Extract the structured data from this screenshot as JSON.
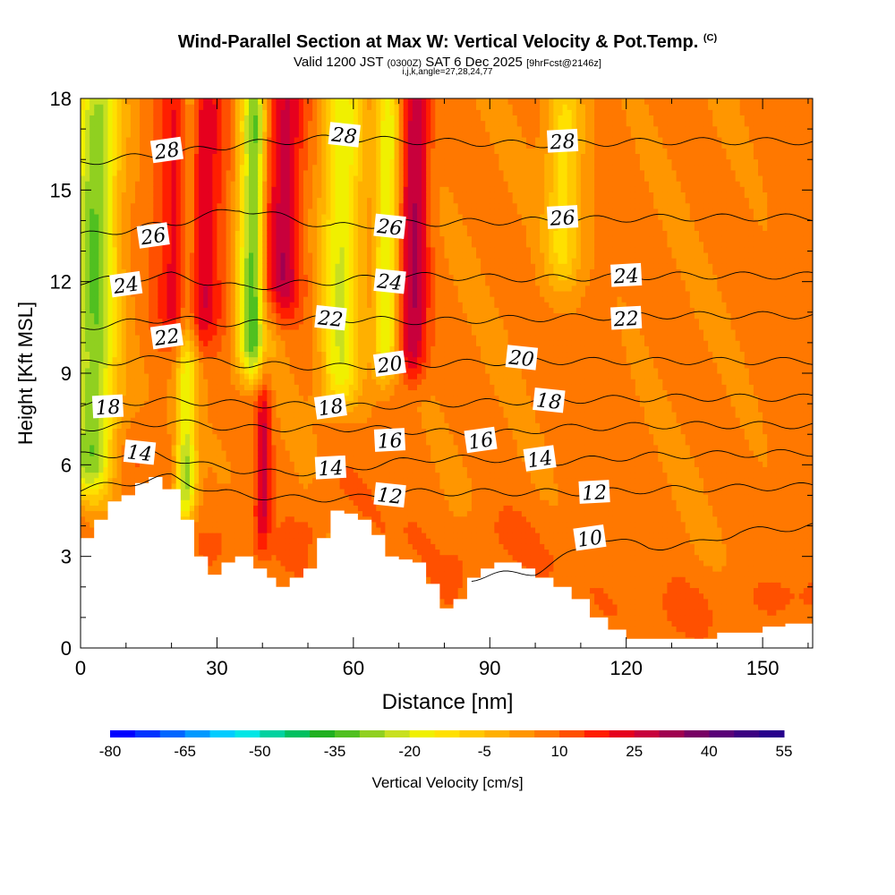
{
  "header": {
    "title": "Wind-Parallel Section at Max W: Vertical Velocity & Pot.Temp.",
    "copyright": "(C)",
    "valid_prefix": "Valid 1200 JST",
    "valid_utc": "(0300Z)",
    "valid_date": "SAT 6 Dec 2025",
    "forecast": "[9hrFcst@2146z]",
    "indices": "i,j,k,angle=27,28,24,77"
  },
  "chart_data": {
    "type": "heatmap",
    "title": "Wind-Parallel Section at Max W: Vertical Velocity & Pot.Temp.",
    "xlabel": "Distance [nm]",
    "ylabel": "Height [Kft MSL]",
    "xlim": [
      0,
      161
    ],
    "ylim": [
      0,
      18
    ],
    "x_ticks": [
      0,
      30,
      60,
      90,
      120,
      150
    ],
    "y_ticks": [
      0,
      3,
      6,
      9,
      12,
      15,
      18
    ],
    "colorbar": {
      "label": "Vertical Velocity [cm/s]",
      "min": -80,
      "max": 55,
      "step": 5,
      "tick_labels": [
        "-80",
        "-65",
        "-50",
        "-35",
        "-20",
        "-5",
        "10",
        "25",
        "40",
        "55"
      ],
      "colors": [
        "#0000ff",
        "#0033ff",
        "#0066ff",
        "#0099ff",
        "#00ccff",
        "#00e6e6",
        "#00d2a0",
        "#00c060",
        "#20b020",
        "#50c020",
        "#90d020",
        "#c8e020",
        "#f0f000",
        "#ffe000",
        "#ffc800",
        "#ffb000",
        "#ff9600",
        "#ff7800",
        "#ff5000",
        "#ff1e00",
        "#e6001e",
        "#c8003c",
        "#a00050",
        "#780064",
        "#5a0078",
        "#3c0082",
        "#28008c"
      ]
    },
    "velocity_bands": [
      {
        "x": 2.5,
        "width": 3.5,
        "min_value": -30,
        "top_height": 18,
        "bottom_height": 5
      },
      {
        "x": 24,
        "width": 4.5,
        "min_value": 32,
        "top_height": 18,
        "bottom_height": 10
      },
      {
        "x": 23,
        "width": 1.6,
        "min_value": -30,
        "top_height": 6.5,
        "bottom_height": 4.2
      },
      {
        "x": 38,
        "width": 2.5,
        "min_value": -35,
        "top_height": 18,
        "bottom_height": 9
      },
      {
        "x": 44,
        "width": 3.0,
        "min_value": 30,
        "top_height": 18,
        "bottom_height": 11
      },
      {
        "x": 40,
        "width": 1.2,
        "min_value": 25,
        "top_height": 8,
        "bottom_height": 3.5
      },
      {
        "x": 57,
        "width": 3.0,
        "min_value": -20,
        "top_height": 18,
        "bottom_height": 8
      },
      {
        "x": 67,
        "width": 1.8,
        "min_value": -20,
        "top_height": 18,
        "bottom_height": 9
      },
      {
        "x": 73,
        "width": 2.2,
        "min_value": 30,
        "top_height": 18,
        "bottom_height": 9
      },
      {
        "x": 106,
        "width": 2.8,
        "min_value": -12,
        "top_height": 18,
        "bottom_height": 12
      }
    ],
    "isentropes": [
      {
        "theta": 10,
        "heights": [
          [
            86,
            2.3
          ],
          [
            100,
            2.5
          ],
          [
            115,
            3.6
          ],
          [
            125,
            3.3
          ],
          [
            135,
            3.4
          ],
          [
            145,
            3.8
          ],
          [
            161,
            4.0
          ]
        ]
      },
      {
        "theta": 12,
        "heights": [
          [
            0,
            5.2
          ],
          [
            20,
            5.6
          ],
          [
            30,
            5.1
          ],
          [
            45,
            4.9
          ],
          [
            60,
            4.9
          ],
          [
            70,
            5.1
          ],
          [
            90,
            5.1
          ],
          [
            110,
            5.1
          ],
          [
            130,
            5.2
          ],
          [
            161,
            5.3
          ]
        ]
      },
      {
        "theta": 14,
        "heights": [
          [
            0,
            6.3
          ],
          [
            15,
            6.4
          ],
          [
            30,
            5.9
          ],
          [
            45,
            5.7
          ],
          [
            60,
            5.9
          ],
          [
            75,
            6.2
          ],
          [
            90,
            6.2
          ],
          [
            105,
            6.1
          ],
          [
            125,
            6.3
          ],
          [
            161,
            6.4
          ]
        ]
      },
      {
        "theta": 16,
        "heights": [
          [
            0,
            7.2
          ],
          [
            20,
            7.4
          ],
          [
            35,
            7.2
          ],
          [
            60,
            7.2
          ],
          [
            75,
            7.1
          ],
          [
            90,
            7.0
          ],
          [
            105,
            7.2
          ],
          [
            130,
            7.3
          ],
          [
            161,
            7.3
          ]
        ]
      },
      {
        "theta": 18,
        "heights": [
          [
            0,
            8.0
          ],
          [
            20,
            8.1
          ],
          [
            35,
            8.0
          ],
          [
            60,
            7.9
          ],
          [
            80,
            8.0
          ],
          [
            100,
            8.1
          ],
          [
            130,
            8.2
          ],
          [
            161,
            8.2
          ]
        ]
      },
      {
        "theta": 20,
        "heights": [
          [
            0,
            9.3
          ],
          [
            20,
            9.5
          ],
          [
            35,
            9.3
          ],
          [
            55,
            9.2
          ],
          [
            75,
            9.3
          ],
          [
            100,
            9.4
          ],
          [
            130,
            9.4
          ],
          [
            161,
            9.4
          ]
        ]
      },
      {
        "theta": 22,
        "heights": [
          [
            0,
            10.5
          ],
          [
            20,
            10.8
          ],
          [
            35,
            10.6
          ],
          [
            55,
            10.8
          ],
          [
            75,
            10.7
          ],
          [
            100,
            10.8
          ],
          [
            130,
            10.9
          ],
          [
            161,
            10.9
          ]
        ]
      },
      {
        "theta": 24,
        "heights": [
          [
            0,
            12.0
          ],
          [
            20,
            12.2
          ],
          [
            35,
            11.8
          ],
          [
            55,
            12.0
          ],
          [
            70,
            12.2
          ],
          [
            100,
            12.1
          ],
          [
            130,
            12.2
          ],
          [
            161,
            12.2
          ]
        ]
      },
      {
        "theta": 26,
        "heights": [
          [
            0,
            13.5
          ],
          [
            20,
            13.9
          ],
          [
            35,
            14.4
          ],
          [
            55,
            13.8
          ],
          [
            70,
            13.9
          ],
          [
            100,
            14.0
          ],
          [
            130,
            14.1
          ],
          [
            161,
            14.1
          ]
        ]
      },
      {
        "theta": 28,
        "heights": [
          [
            0,
            15.9
          ],
          [
            20,
            16.2
          ],
          [
            35,
            16.5
          ],
          [
            55,
            16.7
          ],
          [
            75,
            16.6
          ],
          [
            100,
            16.5
          ],
          [
            130,
            16.6
          ],
          [
            161,
            16.6
          ]
        ]
      }
    ],
    "contour_labels": [
      {
        "text": "28",
        "x": 19,
        "y": 16.3
      },
      {
        "text": "28",
        "x": 58,
        "y": 16.8
      },
      {
        "text": "28",
        "x": 106,
        "y": 16.6
      },
      {
        "text": "26",
        "x": 16,
        "y": 13.5
      },
      {
        "text": "26",
        "x": 68,
        "y": 13.8
      },
      {
        "text": "26",
        "x": 106,
        "y": 14.1
      },
      {
        "text": "24",
        "x": 10,
        "y": 11.9
      },
      {
        "text": "24",
        "x": 68,
        "y": 12.0
      },
      {
        "text": "24",
        "x": 120,
        "y": 12.2
      },
      {
        "text": "22",
        "x": 19,
        "y": 10.2
      },
      {
        "text": "22",
        "x": 55,
        "y": 10.8
      },
      {
        "text": "22",
        "x": 120,
        "y": 10.8
      },
      {
        "text": "20",
        "x": 68,
        "y": 9.3
      },
      {
        "text": "20",
        "x": 97,
        "y": 9.5
      },
      {
        "text": "18",
        "x": 6,
        "y": 7.9
      },
      {
        "text": "18",
        "x": 55,
        "y": 7.9
      },
      {
        "text": "18",
        "x": 103,
        "y": 8.1
      },
      {
        "text": "16",
        "x": 68,
        "y": 6.8
      },
      {
        "text": "16",
        "x": 88,
        "y": 6.8
      },
      {
        "text": "14",
        "x": 13,
        "y": 6.4
      },
      {
        "text": "14",
        "x": 55,
        "y": 5.9
      },
      {
        "text": "14",
        "x": 101,
        "y": 6.2
      },
      {
        "text": "12",
        "x": 68,
        "y": 5.0
      },
      {
        "text": "12",
        "x": 113,
        "y": 5.1
      },
      {
        "text": "10",
        "x": 112,
        "y": 3.6
      }
    ],
    "terrain": [
      [
        0,
        3.6
      ],
      [
        3,
        4.2
      ],
      [
        6,
        4.8
      ],
      [
        9,
        5.0
      ],
      [
        12,
        5.4
      ],
      [
        15,
        5.6
      ],
      [
        18,
        5.2
      ],
      [
        22,
        4.2
      ],
      [
        25,
        3.0
      ],
      [
        28,
        2.4
      ],
      [
        31,
        2.8
      ],
      [
        34,
        3.0
      ],
      [
        38,
        2.6
      ],
      [
        41,
        2.3
      ],
      [
        43,
        2.0
      ],
      [
        46,
        2.3
      ],
      [
        49,
        2.6
      ],
      [
        52,
        3.6
      ],
      [
        55,
        4.5
      ],
      [
        58,
        4.4
      ],
      [
        61,
        4.2
      ],
      [
        64,
        3.7
      ],
      [
        67,
        3.0
      ],
      [
        70,
        2.9
      ],
      [
        73,
        2.8
      ],
      [
        76,
        2.1
      ],
      [
        79,
        1.3
      ],
      [
        82,
        1.6
      ],
      [
        85,
        2.3
      ],
      [
        88,
        2.6
      ],
      [
        91,
        2.8
      ],
      [
        97,
        2.6
      ],
      [
        100,
        2.3
      ],
      [
        104,
        2.0
      ],
      [
        108,
        1.6
      ],
      [
        112,
        1.0
      ],
      [
        116,
        0.6
      ],
      [
        120,
        0.3
      ],
      [
        124,
        0.3
      ],
      [
        130,
        0.3
      ],
      [
        140,
        0.5
      ],
      [
        145,
        0.5
      ],
      [
        150,
        0.7
      ],
      [
        155,
        0.8
      ],
      [
        161,
        0.8
      ]
    ]
  }
}
